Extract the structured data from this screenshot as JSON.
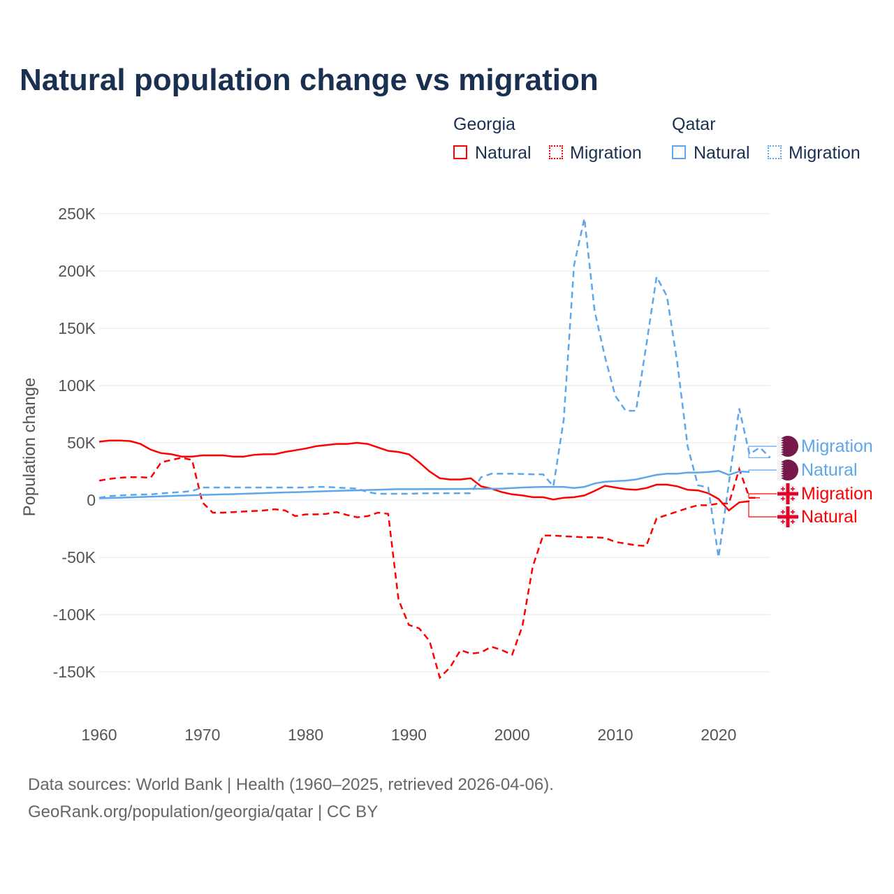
{
  "title": "Natural population change vs migration",
  "legend": {
    "groups": [
      {
        "name": "Georgia",
        "items": [
          "Natural",
          "Migration"
        ]
      },
      {
        "name": "Qatar",
        "items": [
          "Natural",
          "Migration"
        ]
      }
    ]
  },
  "end_labels": {
    "qatar_migration": "Migration",
    "qatar_natural": "Natural",
    "georgia_migration": "Migration",
    "georgia_natural": "Natural"
  },
  "footer": {
    "line1": "Data sources: World Bank | Health (1960–2025, retrieved 2026-04-06).",
    "line2": "GeoRank.org/population/georgia/qatar | CC BY"
  },
  "colors": {
    "georgia": "#ff0000",
    "qatar": "#5ea6ec",
    "text": "#1a3050"
  },
  "chart_data": {
    "type": "line",
    "title": "Natural population change vs migration",
    "ylabel": "Population change",
    "xlabel": "",
    "xlim": [
      1960,
      2025
    ],
    "ylim": [
      -150000,
      250000
    ],
    "xticks": [
      1960,
      1970,
      1980,
      1990,
      2000,
      2010,
      2020
    ],
    "yticks": [
      {
        "v": -150000,
        "l": "-150K"
      },
      {
        "v": -100000,
        "l": "-100K"
      },
      {
        "v": -50000,
        "l": "-50K"
      },
      {
        "v": 0,
        "l": "0"
      },
      {
        "v": 50000,
        "l": "50K"
      },
      {
        "v": 100000,
        "l": "100K"
      },
      {
        "v": 150000,
        "l": "150K"
      },
      {
        "v": 200000,
        "l": "200K"
      },
      {
        "v": 250000,
        "l": "250K"
      }
    ],
    "grid": true,
    "series": [
      {
        "name": "Georgia Natural",
        "color": "#ff0000",
        "dash": false,
        "start": 1960,
        "values_k": [
          51,
          52,
          52,
          51.5,
          49,
          44,
          41,
          40,
          38,
          38,
          39,
          39,
          39,
          38,
          38,
          39.5,
          40,
          40,
          42,
          43.5,
          45,
          47,
          48,
          49,
          49,
          50,
          49,
          46,
          43,
          42,
          40,
          33,
          25,
          19,
          18,
          18,
          19,
          12,
          10,
          7,
          5,
          4,
          2.5,
          2.5,
          0.5,
          2,
          2.5,
          4,
          8,
          12.5,
          11,
          9.5,
          9,
          10.5,
          13.5,
          13.5,
          12,
          9,
          8.5,
          6,
          1,
          -9,
          -2,
          -1
        ]
      },
      {
        "name": "Georgia Migration",
        "color": "#ff0000",
        "dash": true,
        "start": 1960,
        "values_k": [
          17,
          18.5,
          19.5,
          20,
          20,
          19.5,
          33,
          35,
          37,
          35,
          -2,
          -11,
          -11,
          -10.5,
          -10,
          -9.5,
          -9,
          -8,
          -9,
          -14,
          -12.5,
          -12.5,
          -12,
          -10.5,
          -13,
          -15,
          -14,
          -11,
          -12,
          -87,
          -109,
          -112,
          -123,
          -155,
          -146,
          -131,
          -134,
          -133,
          -128,
          -131,
          -135,
          -110,
          -58,
          -31,
          -31,
          -31.5,
          -32,
          -32.5,
          -32.5,
          -33,
          -36.5,
          -38,
          -39.5,
          -40,
          -16,
          -13,
          -10,
          -7,
          -4.5,
          -4.5,
          -3,
          -3,
          27,
          2,
          2
        ]
      },
      {
        "name": "Qatar Natural",
        "color": "#5ea6ec",
        "dash": false,
        "start": 1960,
        "values_k": [
          1.5,
          1.8,
          2.1,
          2.4,
          2.7,
          3,
          3.3,
          3.6,
          3.9,
          4.2,
          4.5,
          4.7,
          5,
          5.2,
          5.5,
          5.8,
          6.1,
          6.4,
          6.7,
          6.9,
          7.2,
          7.5,
          7.8,
          8,
          8.3,
          8.5,
          8.8,
          9,
          9.3,
          9.5,
          9.5,
          9.5,
          9.6,
          9.6,
          9.7,
          9.7,
          9.8,
          9.8,
          9.9,
          10,
          10.5,
          11,
          11.3,
          11.5,
          11.5,
          11.5,
          10.5,
          11.5,
          14.5,
          16,
          16.5,
          17,
          18,
          20,
          22,
          23,
          23,
          24,
          24,
          24.5,
          25.5,
          22,
          25,
          24.5
        ]
      },
      {
        "name": "Qatar Migration",
        "color": "#5ea6ec",
        "dash": true,
        "start": 1960,
        "values_k": [
          2,
          3.5,
          4,
          4.5,
          4.8,
          5,
          5.8,
          6.5,
          7,
          8,
          11,
          11,
          11,
          11,
          11,
          11,
          11,
          11,
          11,
          11,
          11,
          11.5,
          11.5,
          11,
          10.5,
          10,
          7,
          5.5,
          5.5,
          5.5,
          5.5,
          5.8,
          6,
          6,
          6,
          6,
          6,
          20,
          23,
          23,
          23,
          22.8,
          22.5,
          22.5,
          12,
          70,
          205,
          246,
          165,
          125,
          91,
          78,
          78,
          135,
          195,
          178,
          120,
          47,
          13,
          11,
          -50,
          15,
          80,
          40,
          46,
          37
        ]
      }
    ]
  }
}
